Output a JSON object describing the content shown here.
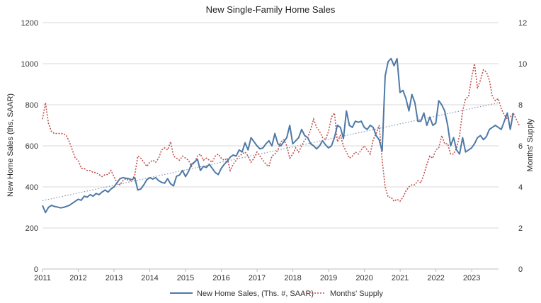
{
  "chart_data": {
    "type": "line",
    "title": "New Single-Family Home Sales",
    "ylabel_left": "New Home Sales (ths, SAAR)",
    "ylabel_right": "Months' Supply",
    "x_ticks": [
      "2011",
      "2012",
      "2013",
      "2014",
      "2015",
      "2016",
      "2017",
      "2018",
      "2019",
      "2020",
      "2021",
      "2022",
      "2023"
    ],
    "xlim": [
      2011.0,
      2023.75
    ],
    "ylim_left": [
      0,
      1200
    ],
    "ylim_right": [
      0,
      12
    ],
    "yticks_left": [
      "0",
      "200",
      "400",
      "600",
      "800",
      "1000",
      "1200"
    ],
    "yticks_right": [
      "0",
      "2",
      "4",
      "6",
      "8",
      "10",
      "12"
    ],
    "grid": "horizontal",
    "legend_position": "bottom",
    "colors": {
      "sales": "#4e79a7",
      "supply": "#c0504d",
      "trend": "#7f96ae"
    },
    "series": [
      {
        "name": "New Home Sales, (Ths. #, SAAR)",
        "axis": "left",
        "style": "solid",
        "x_start": 2011.0,
        "x_step": 0.0833,
        "values": [
          310,
          275,
          300,
          310,
          305,
          302,
          298,
          300,
          305,
          310,
          320,
          330,
          340,
          335,
          355,
          350,
          362,
          355,
          368,
          362,
          375,
          385,
          375,
          390,
          400,
          420,
          440,
          445,
          442,
          440,
          435,
          445,
          385,
          390,
          410,
          435,
          445,
          438,
          445,
          430,
          422,
          418,
          440,
          415,
          405,
          452,
          458,
          480,
          450,
          475,
          510,
          520,
          535,
          480,
          500,
          495,
          510,
          490,
          470,
          460,
          490,
          510,
          525,
          545,
          555,
          550,
          580,
          570,
          615,
          580,
          640,
          620,
          600,
          585,
          590,
          610,
          625,
          600,
          660,
          610,
          600,
          620,
          640,
          700,
          610,
          625,
          640,
          680,
          650,
          640,
          610,
          600,
          585,
          600,
          625,
          605,
          590,
          600,
          640,
          700,
          690,
          635,
          770,
          700,
          690,
          720,
          715,
          720,
          690,
          680,
          700,
          690,
          650,
          630,
          575,
          940,
          1010,
          1025,
          990,
          1025,
          860,
          870,
          830,
          770,
          850,
          810,
          720,
          720,
          760,
          700,
          740,
          700,
          710,
          820,
          800,
          770,
          700,
          600,
          640,
          580,
          560,
          640,
          570,
          580,
          590,
          610,
          640,
          650,
          630,
          645,
          680,
          690,
          700,
          690,
          680,
          720,
          760,
          680,
          760
        ]
      },
      {
        "name": "Months' Supply",
        "axis": "right",
        "style": "dotted",
        "x_start": 2011.0,
        "x_step": 0.0833,
        "values": [
          7.3,
          8.1,
          7.1,
          6.7,
          6.6,
          6.6,
          6.6,
          6.6,
          6.5,
          6.2,
          5.8,
          5.4,
          5.3,
          4.9,
          4.9,
          4.8,
          4.8,
          4.7,
          4.7,
          4.6,
          4.5,
          4.6,
          4.6,
          4.8,
          4.5,
          4.2,
          4.1,
          4.3,
          4.4,
          4.3,
          4.3,
          4.6,
          5.5,
          5.4,
          5.2,
          5.0,
          5.2,
          5.3,
          5.2,
          5.4,
          5.8,
          5.9,
          5.8,
          6.2,
          5.5,
          5.4,
          5.3,
          5.5,
          5.4,
          5.3,
          5.0,
          5.2,
          5.5,
          5.6,
          5.3,
          5.4,
          5.3,
          5.2,
          5.5,
          5.6,
          5.4,
          5.3,
          5.4,
          4.8,
          5.1,
          5.3,
          5.5,
          5.6,
          5.7,
          5.5,
          5.2,
          5.4,
          5.7,
          5.5,
          5.3,
          5.1,
          5.0,
          5.5,
          5.6,
          5.8,
          6.2,
          6.3,
          6.0,
          5.4,
          5.6,
          5.9,
          5.7,
          6.0,
          6.3,
          6.4,
          6.8,
          7.3,
          6.9,
          6.7,
          6.4,
          6.3,
          6.7,
          7.4,
          7.6,
          6.2,
          6.5,
          6.0,
          5.7,
          5.4,
          5.5,
          5.7,
          5.6,
          5.8,
          6.0,
          5.8,
          5.6,
          6.3,
          6.6,
          7.0,
          5.3,
          4.0,
          3.5,
          3.5,
          3.3,
          3.4,
          3.3,
          3.5,
          3.8,
          4.0,
          4.1,
          4.1,
          4.3,
          4.2,
          4.6,
          5.1,
          5.5,
          5.4,
          5.8,
          5.9,
          6.5,
          6.1,
          6.1,
          5.6,
          5.6,
          5.9,
          6.5,
          7.7,
          8.3,
          8.4,
          9.3,
          10.0,
          8.8,
          9.2,
          9.7,
          9.6,
          9.2,
          8.4,
          8.2,
          8.3,
          7.8,
          7.5,
          7.3,
          7.4,
          7.6,
          7.3,
          7.0
        ]
      },
      {
        "name": "",
        "axis": "left",
        "style": "trendline",
        "points": [
          [
            2011.0,
            333
          ],
          [
            2023.75,
            810
          ]
        ]
      }
    ]
  }
}
